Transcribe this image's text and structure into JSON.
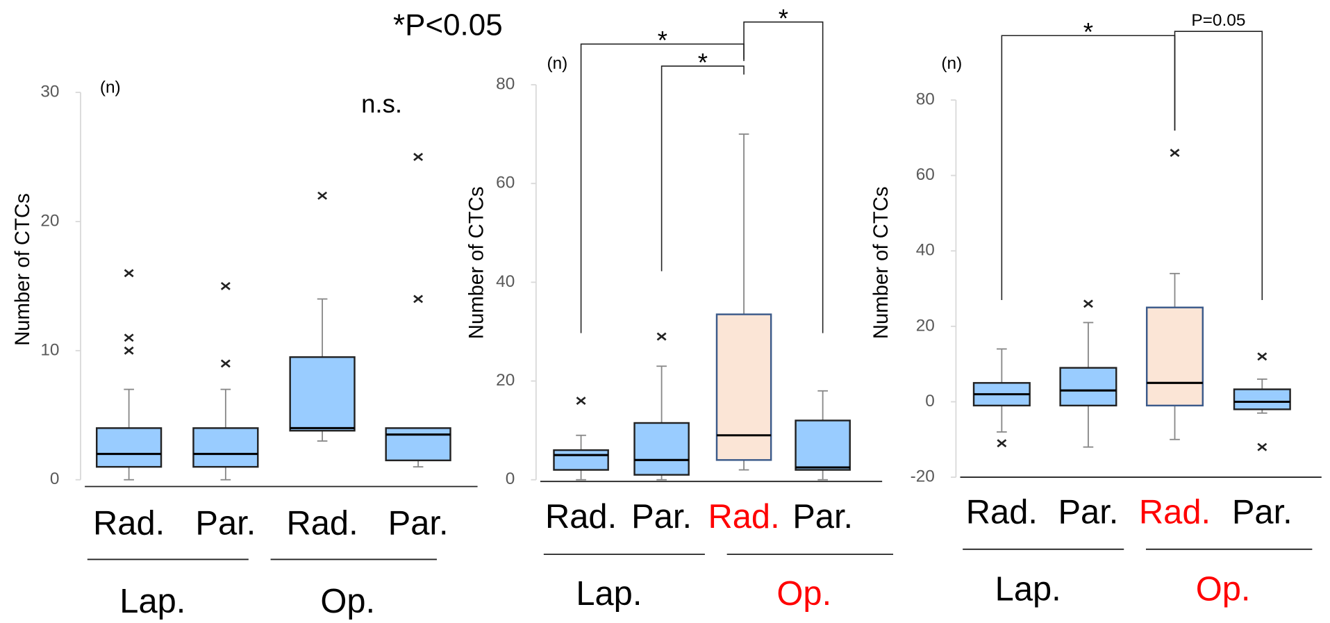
{
  "note": "*P<0.05",
  "chart_data": [
    {
      "type": "box",
      "y_label": "Number of CTCs",
      "n_label": "(n)",
      "annotation": "n.s.",
      "categories": [
        "Rad.",
        "Par.",
        "Rad.",
        "Par."
      ],
      "category_colors": [
        "#000000",
        "#000000",
        "#000000",
        "#000000"
      ],
      "groups": [
        "Lap.",
        "Op."
      ],
      "group_colors": [
        "#000000",
        "#000000"
      ],
      "ylim": [
        0,
        30
      ],
      "yticks": [
        0,
        10,
        20,
        30
      ],
      "boxes": [
        {
          "whislo": 0,
          "q1": 1,
          "med": 2,
          "q3": 4,
          "whishi": 7,
          "fliers": [
            10,
            11,
            16
          ],
          "color": "#99ccff"
        },
        {
          "whislo": 0,
          "q1": 1,
          "med": 2,
          "q3": 4,
          "whishi": 7,
          "fliers": [
            9,
            15
          ],
          "color": "#99ccff"
        },
        {
          "whislo": 3,
          "q1": 3.8,
          "med": 4,
          "q3": 9.5,
          "whishi": 14,
          "fliers": [
            22
          ],
          "color": "#99ccff"
        },
        {
          "whislo": 1,
          "q1": 1.5,
          "med": 3.5,
          "q3": 4,
          "whishi": 4,
          "fliers": [
            14,
            25
          ],
          "color": "#99ccff"
        }
      ],
      "brackets": []
    },
    {
      "type": "box",
      "y_label": "Number of CTCs",
      "n_label": "(n)",
      "categories": [
        "Rad.",
        "Par.",
        "Rad.",
        "Par."
      ],
      "category_colors": [
        "#000000",
        "#000000",
        "#ff0000",
        "#000000"
      ],
      "groups": [
        "Lap.",
        "Op."
      ],
      "group_colors": [
        "#000000",
        "#ff0000"
      ],
      "ylim": [
        0,
        80
      ],
      "yticks": [
        0,
        20,
        40,
        60,
        80
      ],
      "boxes": [
        {
          "whislo": 0,
          "q1": 2,
          "med": 5,
          "q3": 6,
          "whishi": 9,
          "fliers": [
            16
          ],
          "color": "#99ccff"
        },
        {
          "whislo": 0,
          "q1": 1,
          "med": 4,
          "q3": 11.5,
          "whishi": 23,
          "fliers": [
            29
          ],
          "color": "#99ccff"
        },
        {
          "whislo": 2,
          "q1": 4,
          "med": 9,
          "q3": 33.5,
          "whishi": 70,
          "fliers": [],
          "color": "#fbe5d6"
        },
        {
          "whislo": 0,
          "q1": 2,
          "med": 2.5,
          "q3": 12,
          "whishi": 18,
          "fliers": [],
          "color": "#99ccff"
        }
      ],
      "brackets": [
        {
          "from": 1,
          "to": 2,
          "label": "*"
        },
        {
          "from": 0,
          "to": 2,
          "label": "*"
        },
        {
          "from": 2,
          "to": 3,
          "label": "*"
        }
      ]
    },
    {
      "type": "box",
      "y_label": "Number of CTCs",
      "n_label": "(n)",
      "categories": [
        "Rad.",
        "Par.",
        "Rad.",
        "Par."
      ],
      "category_colors": [
        "#000000",
        "#000000",
        "#ff0000",
        "#000000"
      ],
      "groups": [
        "Lap.",
        "Op."
      ],
      "group_colors": [
        "#000000",
        "#ff0000"
      ],
      "ylim": [
        -20,
        80
      ],
      "yticks": [
        -20,
        0,
        20,
        40,
        60,
        80
      ],
      "boxes": [
        {
          "whislo": -8,
          "q1": -1,
          "med": 2,
          "q3": 5,
          "whishi": 14,
          "fliers": [
            -11
          ],
          "color": "#99ccff"
        },
        {
          "whislo": -12,
          "q1": -1,
          "med": 3,
          "q3": 9,
          "whishi": 21,
          "fliers": [
            26
          ],
          "color": "#99ccff"
        },
        {
          "whislo": -10,
          "q1": -1,
          "med": 5,
          "q3": 25,
          "whishi": 34,
          "fliers": [
            66
          ],
          "color": "#fbe5d6"
        },
        {
          "whislo": -3,
          "q1": -2,
          "med": 0,
          "q3": 3.3,
          "whishi": 6,
          "fliers": [
            12,
            -12
          ],
          "color": "#99ccff"
        }
      ],
      "brackets": [
        {
          "from": 0,
          "to": 2,
          "label": "*"
        },
        {
          "from": 2,
          "to": 3,
          "label": "P=0.05"
        }
      ]
    }
  ]
}
